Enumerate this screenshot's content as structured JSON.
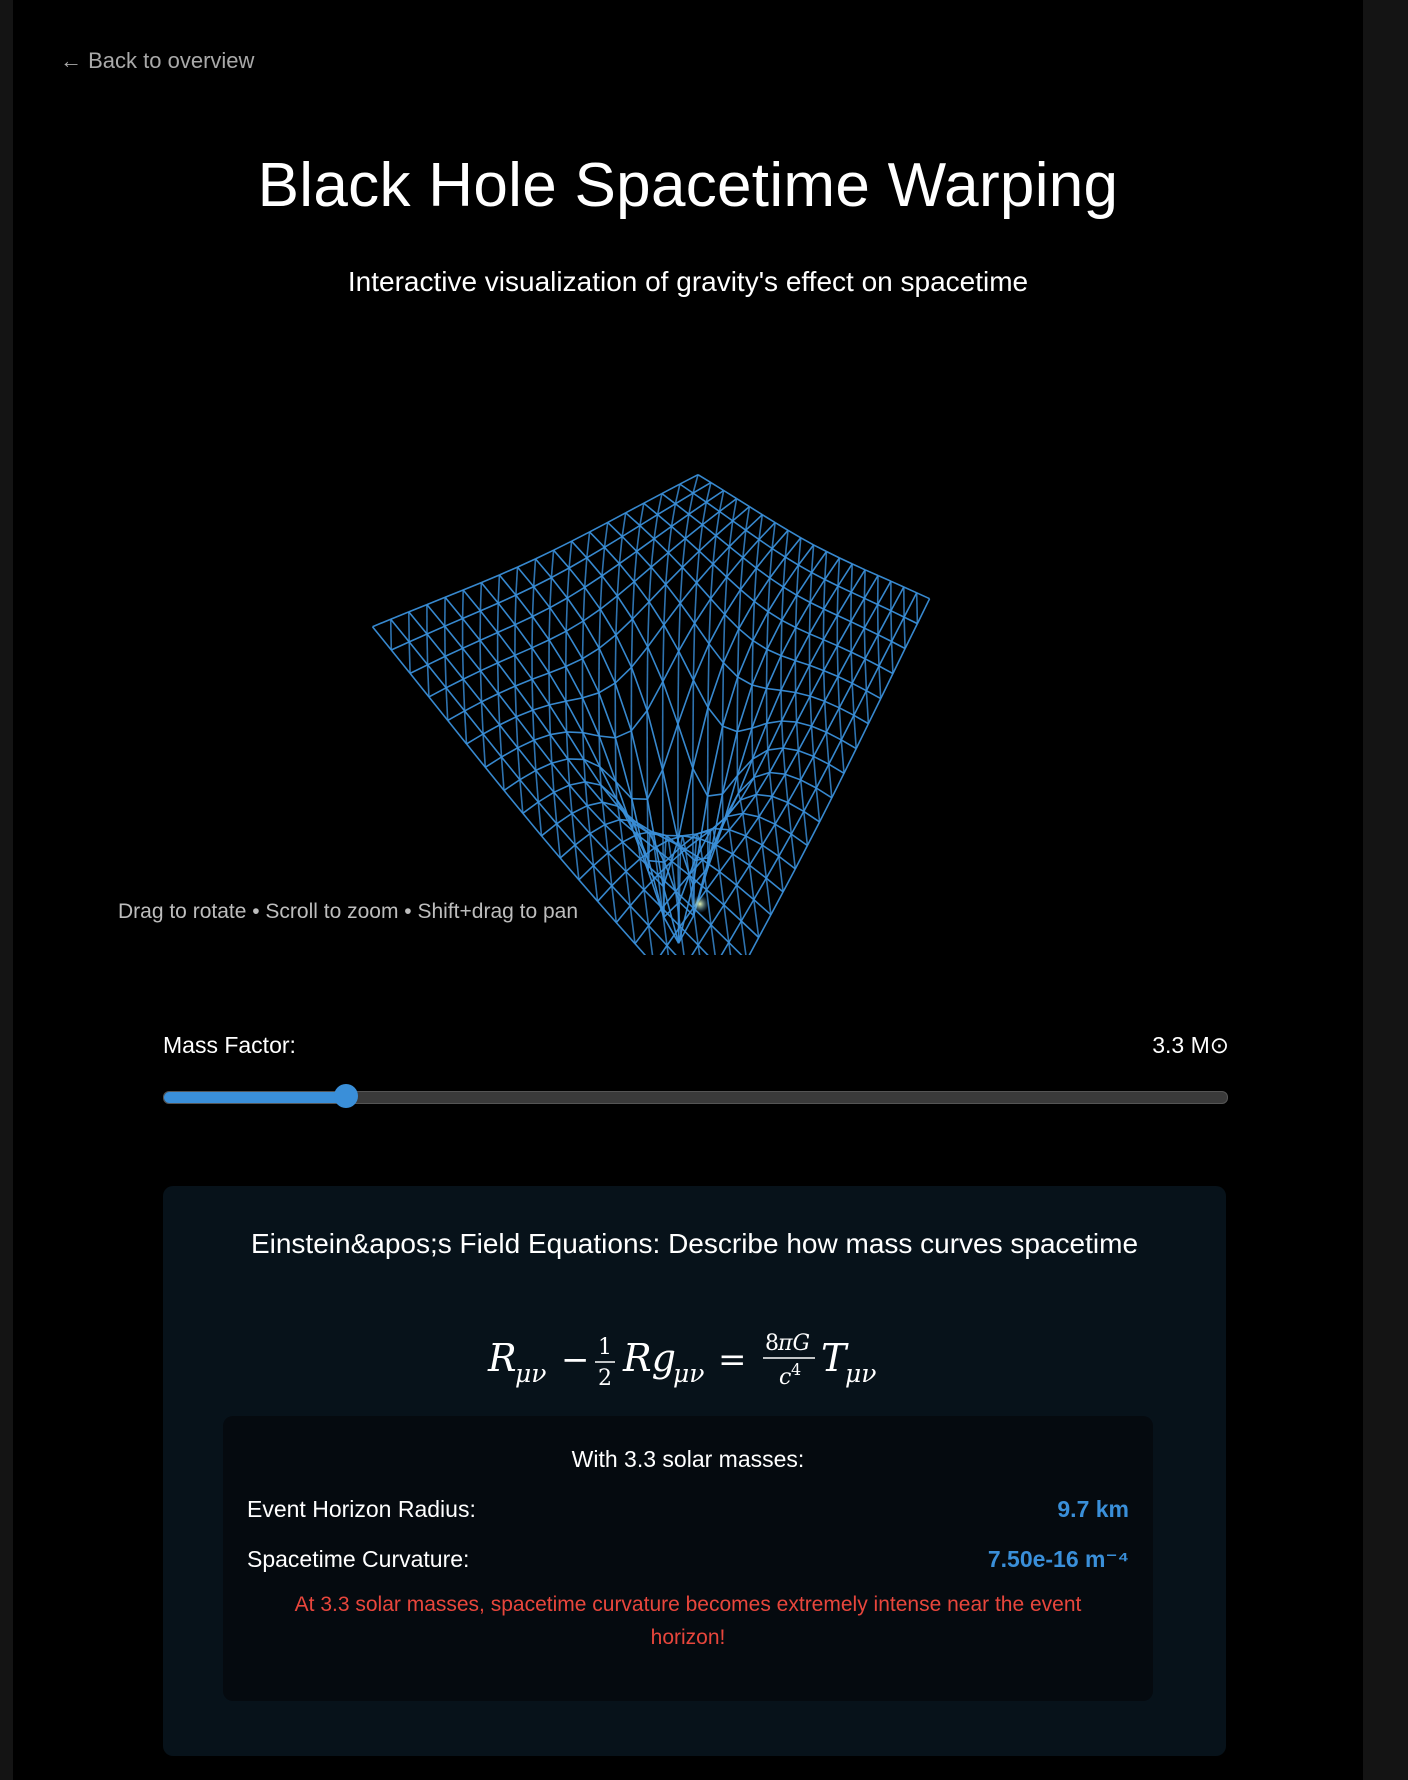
{
  "nav": {
    "back_label": "← Back to overview"
  },
  "header": {
    "title": "Black Hole Spacetime Warping",
    "subtitle": "Interactive visualization of gravity's effect on spacetime"
  },
  "visualization": {
    "hint": "Drag to rotate • Scroll to zoom • Shift+drag to pan",
    "grid_color": "#3a8fd9",
    "core_color": "#c9e8a0"
  },
  "controls": {
    "mass_label": "Mass Factor:",
    "mass_value": "3.3 M⊙",
    "slider_fraction": 0.172,
    "accent": "#3a8fd9"
  },
  "equations": {
    "heading": "Einstein&apos;s Field Equations: Describe how mass curves spacetime",
    "results_heading": "With 3.3 solar masses:",
    "horizon_label": "Event Horizon Radius:",
    "horizon_value": "9.7 km",
    "curvature_label": "Spacetime Curvature:",
    "curvature_value": "7.50e-16 m⁻⁴",
    "warning": "At 3.3 solar masses, spacetime curvature becomes extremely intense near the event horizon!",
    "warning_color": "#e8463c"
  }
}
